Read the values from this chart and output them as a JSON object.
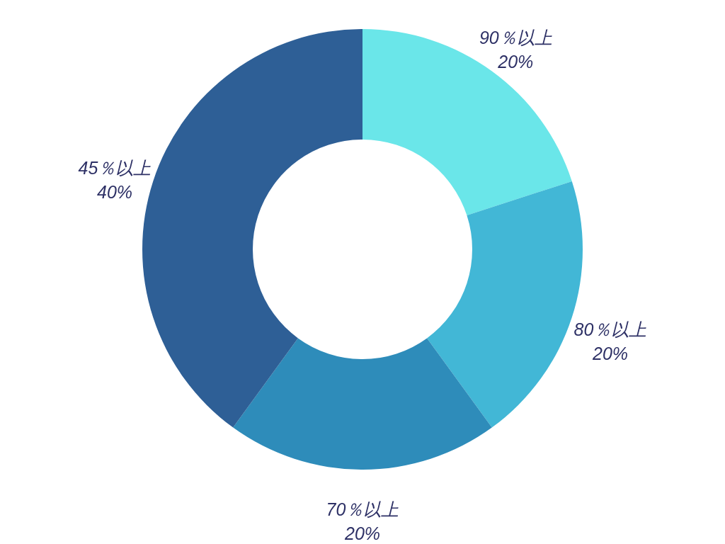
{
  "chart_data": {
    "type": "donut",
    "categories": [
      "90％以上",
      "80％以上",
      "70％以上",
      "45％以上"
    ],
    "values": [
      20,
      20,
      20,
      40
    ],
    "value_labels": [
      "20%",
      "20%",
      "20%",
      "40%"
    ],
    "colors": [
      "#6ae6e9",
      "#42b7d6",
      "#2e8cba",
      "#2e5f96"
    ]
  }
}
